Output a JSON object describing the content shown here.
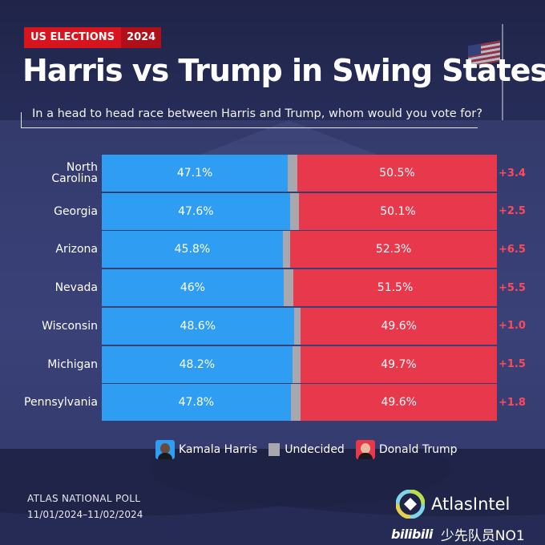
{
  "header": {
    "tag_label": "US ELECTIONS",
    "tag_year": "2024",
    "title": "Harris vs Trump in Swing States",
    "subtitle": "In a head to head race between Harris and Trump, whom would you vote for?"
  },
  "chart_data": {
    "type": "bar",
    "orientation": "horizontal-stacked-100",
    "title": "Harris vs Trump in Swing States",
    "question": "In a head to head race between Harris and Trump, whom would you vote for?",
    "categories": [
      "North Carolina",
      "Georgia",
      "Arizona",
      "Nevada",
      "Wisconsin",
      "Michigan",
      "Pennsylvania"
    ],
    "category_display": [
      "North\nCarolina",
      "Georgia",
      "Arizona",
      "Nevada",
      "Wisconsin",
      "Michigan",
      "Pennsylvania"
    ],
    "series": [
      {
        "name": "Kamala Harris",
        "key": "harris",
        "values": [
          47.1,
          47.6,
          45.8,
          46,
          48.6,
          48.2,
          47.8
        ],
        "labels": [
          "47.1%",
          "47.6%",
          "45.8%",
          "46%",
          "48.6%",
          "48.2%",
          "47.8%"
        ]
      },
      {
        "name": "Undecided",
        "key": "undecided",
        "values": [
          2.4,
          2.3,
          1.9,
          2.5,
          1.8,
          2.1,
          2.6
        ]
      },
      {
        "name": "Donald Trump",
        "key": "trump",
        "values": [
          50.5,
          50.1,
          52.3,
          51.5,
          49.6,
          49.7,
          49.6
        ],
        "labels": [
          "50.5%",
          "50.1%",
          "52.3%",
          "51.5%",
          "49.6%",
          "49.7%",
          "49.6%"
        ]
      }
    ],
    "margins": [
      "+3.4",
      "+2.5",
      "+6.5",
      "+5.5",
      "+1.0",
      "+1.5",
      "+1.8"
    ],
    "xlim": [
      0,
      100
    ],
    "legend_position": "bottom",
    "colors": {
      "harris": "#2f9df2",
      "undecided": "#a7a7ad",
      "trump": "#e8394c",
      "margin": "#ff4a5c"
    }
  },
  "legend": {
    "harris": "Kamala Harris",
    "undecided": "Undecided",
    "trump": "Donald Trump"
  },
  "footer": {
    "poll_name": "ATLAS NATIONAL POLL",
    "poll_dates": "11/01/2024–11/02/2024",
    "brand": "AtlasIntel",
    "watermark_logo": "bilibili",
    "watermark_user": "少先队员NO1"
  }
}
